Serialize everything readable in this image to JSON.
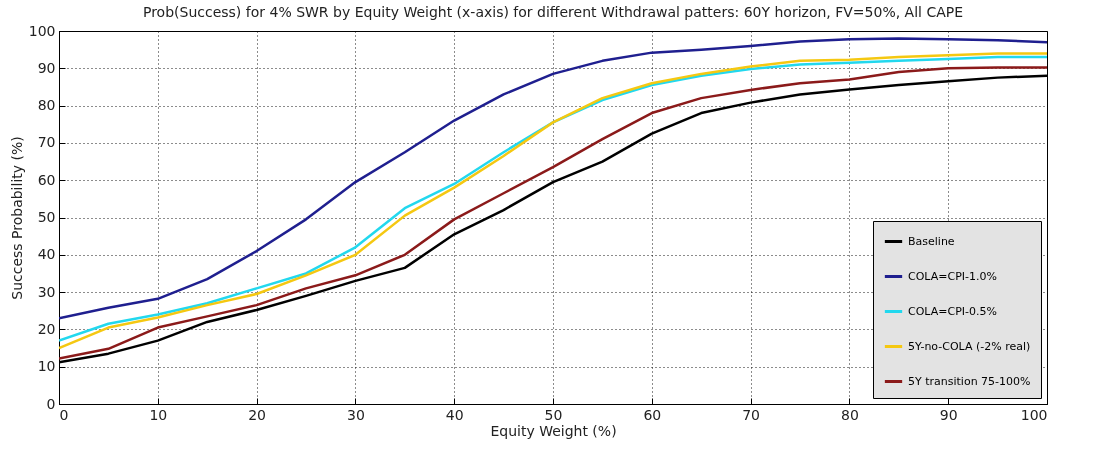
{
  "chart_data": {
    "type": "line",
    "title": "Prob(Success) for 4% SWR by Equity Weight (x-axis) for different Withdrawal patters: 60Y horizon, FV=50%, All CAPE",
    "xlabel": "Equity Weight (%)",
    "ylabel": "Success Probability (%)",
    "x": [
      0,
      5,
      10,
      15,
      20,
      25,
      30,
      35,
      40,
      45,
      50,
      55,
      60,
      65,
      70,
      75,
      80,
      85,
      90,
      95,
      100
    ],
    "series": [
      {
        "name": "Baseline",
        "color": "#000000",
        "values": [
          11.2,
          13.5,
          17,
          22,
          25.2,
          29,
          33,
          36.5,
          45.5,
          52,
          59.5,
          65,
          72.5,
          78,
          80.8,
          83,
          84.3,
          85.5,
          86.5,
          87.5,
          88
        ]
      },
      {
        "name": "COLA=CPI-1.0%",
        "color": "#1f1f8f",
        "values": [
          23,
          25.8,
          28.2,
          33.5,
          41,
          49.5,
          59.5,
          67.5,
          76,
          83,
          88.5,
          92,
          94.2,
          95,
          96,
          97.2,
          97.8,
          98,
          97.8,
          97.5,
          97
        ]
      },
      {
        "name": "COLA=CPI-0.5%",
        "color": "#22d8ee",
        "values": [
          17,
          21.5,
          24,
          27,
          31,
          35,
          42,
          52.5,
          59,
          67.5,
          75.5,
          81.5,
          85.5,
          88,
          89.8,
          91,
          91.5,
          92,
          92.5,
          93,
          93
        ]
      },
      {
        "name": "5Y-no-COLA (-2% real)",
        "color": "#f5c811",
        "values": [
          15,
          20.5,
          23.2,
          26.5,
          29.5,
          34.5,
          40,
          50.5,
          58,
          66.5,
          75.5,
          82,
          86,
          88.5,
          90.5,
          92,
          92.3,
          93,
          93.5,
          94,
          94
        ]
      },
      {
        "name": "5Y transition 75-100%",
        "color": "#8b1a1a",
        "values": [
          12.2,
          14.8,
          20.5,
          23.5,
          26.5,
          31,
          34.5,
          40,
          49.5,
          56.5,
          63.5,
          71,
          78,
          82,
          84.2,
          86,
          87,
          89,
          90,
          90.2,
          90.2
        ]
      }
    ],
    "xlim": [
      0,
      100
    ],
    "xticks": [
      0,
      10,
      20,
      30,
      40,
      50,
      60,
      70,
      80,
      90,
      100
    ],
    "ylim": [
      0,
      100
    ],
    "yticks": [
      0,
      10,
      20,
      30,
      40,
      50,
      60,
      70,
      80,
      90,
      100
    ],
    "grid": true,
    "legend": "bottom right",
    "line_style": "solid"
  }
}
